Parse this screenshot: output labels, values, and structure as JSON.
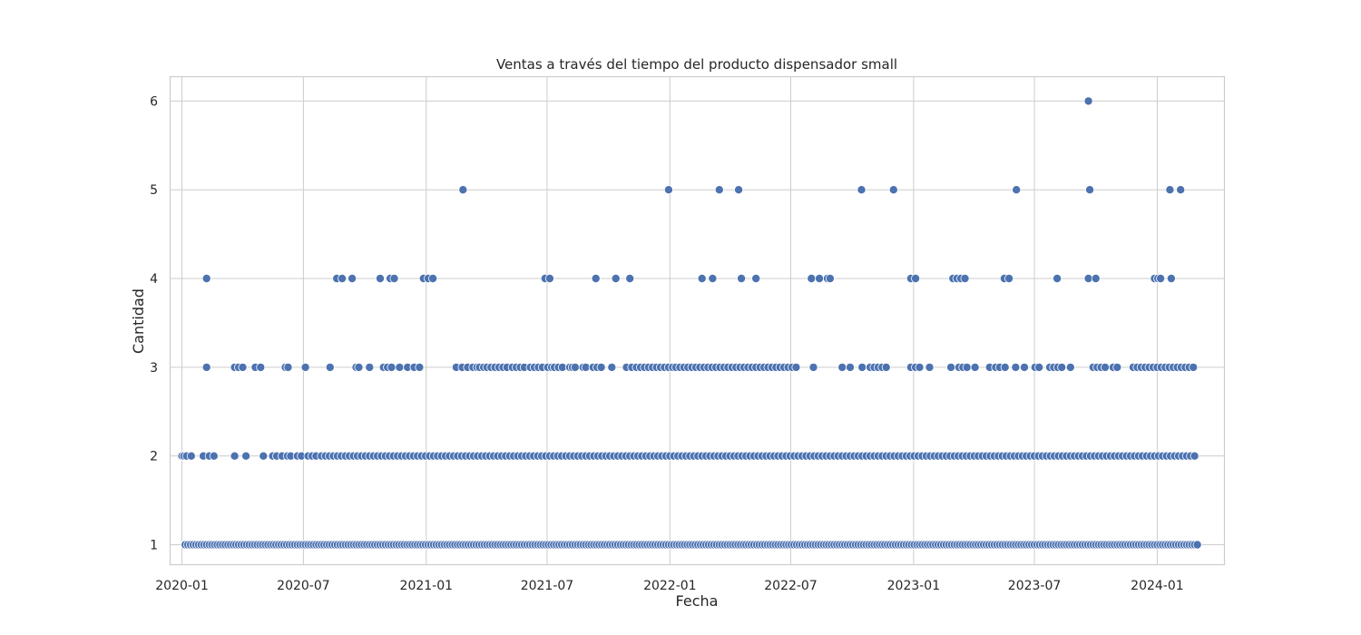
{
  "chart_data": {
    "type": "scatter",
    "title": "Ventas a través del tiempo del producto dispensador small",
    "xlabel": "Fecha",
    "ylabel": "Cantidad",
    "x_ticks": [
      "2020-01",
      "2020-07",
      "2021-01",
      "2021-07",
      "2022-01",
      "2022-07",
      "2023-01",
      "2023-07",
      "2024-01"
    ],
    "y_ticks": [
      1,
      2,
      3,
      4,
      5,
      6
    ],
    "xlim": [
      "2019-12-15",
      "2024-04-10"
    ],
    "ylim": [
      0.78,
      6.27
    ],
    "grid": true,
    "legend": "none",
    "marker_color": "#4c72b0",
    "points_by_value": {
      "6": [
        "2023-09-20"
      ],
      "5": [
        "2021-02-25",
        "2021-12-30",
        "2022-03-16",
        "2022-04-14",
        "2022-10-15",
        "2022-12-02",
        "2023-06-04",
        "2023-09-22",
        "2024-01-20",
        "2024-02-05"
      ],
      "4": [
        "2020-02-07",
        "2020-08-20",
        "2020-08-28",
        "2020-09-12",
        "2020-10-24",
        "2020-11-08",
        "2020-11-14",
        "2020-12-28",
        "2021-01-04",
        "2021-01-11",
        "2021-06-28",
        "2021-07-05",
        "2021-09-12",
        "2021-10-12",
        "2021-11-02",
        "2022-02-18",
        "2022-03-06",
        "2022-04-18",
        "2022-05-10",
        "2022-08-01",
        "2022-08-13",
        "2022-08-25",
        "2022-08-29",
        "2022-12-28",
        "2023-01-04",
        "2023-03-01",
        "2023-03-07",
        "2023-03-13",
        "2023-03-19",
        "2023-05-17",
        "2023-05-24",
        "2023-08-04",
        "2023-09-20",
        "2023-10-01",
        "2023-12-28",
        "2024-01-02",
        "2024-01-06",
        "2024-01-22"
      ],
      "3": [
        "2020-02-07",
        "2020-03-20",
        "2020-03-26",
        "2020-04-01",
        "2020-04-20",
        "2020-04-28",
        "2020-06-04",
        "2020-06-08",
        "2020-07-04",
        "2020-08-10",
        "2020-09-18",
        "2020-09-22",
        "2020-10-08",
        "2020-10-29",
        "2020-11-04",
        "2020-11-10",
        "2020-11-22",
        "2020-12-04",
        "2020-12-14",
        "2020-12-22",
        "2021-02-15",
        "2021-02-24",
        "2021-03-04",
        "2021-03-12",
        "2021-03-18",
        "2021-03-22",
        "2021-03-28",
        "2021-04-02",
        "2021-04-08",
        "2021-04-14",
        "2021-04-20",
        "2021-04-26",
        "2021-05-02",
        "2021-05-10",
        "2021-05-16",
        "2021-05-22",
        "2021-05-28",
        "2021-06-06",
        "2021-06-12",
        "2021-06-18",
        "2021-06-24",
        "2021-07-02",
        "2021-07-08",
        "2021-07-12",
        "2021-07-18",
        "2021-07-24",
        "2021-08-04",
        "2021-08-08",
        "2021-08-12",
        "2021-08-24",
        "2021-08-28",
        "2021-09-08",
        "2021-09-14",
        "2021-09-20",
        "2021-10-06",
        "2021-10-28",
        "2021-11-05",
        "2021-11-12",
        "2021-11-18",
        "2021-11-24",
        "2021-11-30",
        "2021-12-06",
        "2021-12-12",
        "2021-12-18",
        "2021-12-24",
        "2021-12-30",
        "2022-01-05",
        "2022-01-10",
        "2022-01-16",
        "2022-01-22",
        "2022-01-28",
        "2022-02-03",
        "2022-02-09",
        "2022-02-15",
        "2022-02-21",
        "2022-02-27",
        "2022-03-05",
        "2022-03-11",
        "2022-03-17",
        "2022-03-23",
        "2022-03-29",
        "2022-04-04",
        "2022-04-10",
        "2022-04-16",
        "2022-04-22",
        "2022-04-28",
        "2022-05-04",
        "2022-05-10",
        "2022-05-16",
        "2022-05-22",
        "2022-05-28",
        "2022-06-03",
        "2022-06-09",
        "2022-06-15",
        "2022-06-21",
        "2022-06-27",
        "2022-07-03",
        "2022-07-09",
        "2022-08-04",
        "2022-09-16",
        "2022-09-28",
        "2022-10-16",
        "2022-10-28",
        "2022-11-03",
        "2022-11-09",
        "2022-11-15",
        "2022-11-21",
        "2022-12-28",
        "2023-01-04",
        "2023-01-10",
        "2023-01-25",
        "2023-02-26",
        "2023-03-10",
        "2023-03-16",
        "2023-03-22",
        "2023-04-03",
        "2023-04-25",
        "2023-05-04",
        "2023-05-10",
        "2023-05-18",
        "2023-06-03",
        "2023-06-16",
        "2023-07-02",
        "2023-07-08",
        "2023-07-24",
        "2023-07-30",
        "2023-08-05",
        "2023-08-11",
        "2023-08-24",
        "2023-09-27",
        "2023-10-03",
        "2023-10-09",
        "2023-10-15",
        "2023-10-27",
        "2023-11-02",
        "2023-11-26",
        "2023-12-02",
        "2023-12-08",
        "2023-12-14",
        "2023-12-20",
        "2023-12-26",
        "2024-01-01",
        "2024-01-07",
        "2024-01-13",
        "2024-01-19",
        "2024-01-25",
        "2024-01-31",
        "2024-02-06",
        "2024-02-12",
        "2024-02-18",
        "2024-02-24"
      ],
      "2": [
        "2020-01-01",
        "2020-01-04",
        "2020-01-08",
        "2020-01-15",
        "2020-02-02",
        "2020-02-11",
        "2020-02-18",
        "2020-03-20",
        "2020-04-06",
        "2020-05-02",
        "2020-05-16",
        "2020-05-22",
        "2020-05-30",
        "2020-06-07",
        "2020-06-12",
        "2020-06-22",
        "2020-06-28",
        "2020-07-08",
        "2020-07-14",
        "2020-07-20",
        "2020-07-28",
        "2020-08-03",
        "2020-08-09",
        "2020-08-15",
        "2020-08-21",
        "2020-08-27",
        "2020-09-02",
        "2020-09-08",
        "2020-09-14",
        "2020-09-20",
        "2020-09-26",
        "2020-10-02",
        "2020-10-08",
        "2020-10-14",
        "2020-10-20",
        "2020-10-26",
        "2020-11-01",
        "2020-11-07",
        "2020-11-13",
        "2020-11-19",
        "2020-11-25",
        "2020-12-01",
        "2020-12-07",
        "2020-12-13",
        "2020-12-19",
        "2020-12-25",
        "2020-12-31",
        "2021-01-06",
        "2021-01-12",
        "2021-01-18",
        "2021-01-24",
        "2021-01-30",
        "2021-02-05",
        "2021-02-11",
        "2021-02-17",
        "2021-02-23",
        "2021-03-01",
        "2021-03-07",
        "2021-03-13",
        "2021-03-19",
        "2021-03-25",
        "2021-03-31",
        "2021-04-06",
        "2021-04-12",
        "2021-04-18",
        "2021-04-24",
        "2021-04-30",
        "2021-05-06",
        "2021-05-12",
        "2021-05-18",
        "2021-05-24",
        "2021-05-30",
        "2021-06-05",
        "2021-06-11",
        "2021-06-17",
        "2021-06-23",
        "2021-06-29",
        "2021-07-05",
        "2021-07-11",
        "2021-07-17",
        "2021-07-23",
        "2021-07-29",
        "2021-08-04",
        "2021-08-10",
        "2021-08-16",
        "2021-08-22",
        "2021-08-28",
        "2021-09-03",
        "2021-09-09",
        "2021-09-15",
        "2021-09-21",
        "2021-09-27",
        "2021-10-03",
        "2021-10-09",
        "2021-10-15",
        "2021-10-21",
        "2021-10-27",
        "2021-11-02",
        "2021-11-08",
        "2021-11-14",
        "2021-11-20",
        "2021-11-26",
        "2021-12-02",
        "2021-12-08",
        "2021-12-14",
        "2021-12-20",
        "2021-12-26",
        "2022-01-01",
        "2022-01-07",
        "2022-01-13",
        "2022-01-19",
        "2022-01-25",
        "2022-01-31",
        "2022-02-06",
        "2022-02-12",
        "2022-02-18",
        "2022-02-24",
        "2022-03-02",
        "2022-03-08",
        "2022-03-14",
        "2022-03-20",
        "2022-03-26",
        "2022-04-01",
        "2022-04-07",
        "2022-04-13",
        "2022-04-19",
        "2022-04-25",
        "2022-05-01",
        "2022-05-07",
        "2022-05-13",
        "2022-05-19",
        "2022-05-25",
        "2022-05-31",
        "2022-06-06",
        "2022-06-12",
        "2022-06-18",
        "2022-06-24",
        "2022-06-30",
        "2022-07-06",
        "2022-07-12",
        "2022-07-18",
        "2022-07-24",
        "2022-07-30",
        "2022-08-05",
        "2022-08-11",
        "2022-08-17",
        "2022-08-23",
        "2022-08-29",
        "2022-09-04",
        "2022-09-10",
        "2022-09-16",
        "2022-09-22",
        "2022-09-28",
        "2022-10-04",
        "2022-10-10",
        "2022-10-16",
        "2022-10-22",
        "2022-10-28",
        "2022-11-03",
        "2022-11-09",
        "2022-11-15",
        "2022-11-21",
        "2022-11-27",
        "2022-12-03",
        "2022-12-09",
        "2022-12-15",
        "2022-12-21",
        "2022-12-27",
        "2023-01-02",
        "2023-01-08",
        "2023-01-14",
        "2023-01-20",
        "2023-01-26",
        "2023-02-01",
        "2023-02-07",
        "2023-02-13",
        "2023-02-19",
        "2023-02-25",
        "2023-03-03",
        "2023-03-09",
        "2023-03-15",
        "2023-03-21",
        "2023-03-27",
        "2023-04-02",
        "2023-04-08",
        "2023-04-14",
        "2023-04-20",
        "2023-04-26",
        "2023-05-02",
        "2023-05-08",
        "2023-05-14",
        "2023-05-20",
        "2023-05-26",
        "2023-06-01",
        "2023-06-07",
        "2023-06-13",
        "2023-06-19",
        "2023-06-25",
        "2023-07-01",
        "2023-07-07",
        "2023-07-13",
        "2023-07-19",
        "2023-07-25",
        "2023-07-31",
        "2023-08-06",
        "2023-08-12",
        "2023-08-18",
        "2023-08-24",
        "2023-08-30",
        "2023-09-05",
        "2023-09-11",
        "2023-09-17",
        "2023-09-23",
        "2023-09-29",
        "2023-10-05",
        "2023-10-11",
        "2023-10-17",
        "2023-10-23",
        "2023-10-29",
        "2023-11-04",
        "2023-11-10",
        "2023-11-16",
        "2023-11-22",
        "2023-11-28",
        "2023-12-04",
        "2023-12-10",
        "2023-12-16",
        "2023-12-22",
        "2023-12-28",
        "2024-01-03",
        "2024-01-09",
        "2024-01-15",
        "2024-01-21",
        "2024-01-27",
        "2024-02-02",
        "2024-02-08",
        "2024-02-14",
        "2024-02-20",
        "2024-02-26"
      ],
      "1": [
        "2020-01-06",
        "2020-01-10",
        "2020-01-14",
        "2020-01-18",
        "2020-01-22",
        "2020-01-26",
        "2020-01-30",
        "2020-02-03",
        "2020-02-07",
        "2020-02-11",
        "2020-02-15",
        "2020-02-19",
        "2020-02-23",
        "2020-02-27",
        "2020-03-02",
        "2020-03-06",
        "2020-03-10",
        "2020-03-14",
        "2020-03-18",
        "2020-03-22",
        "2020-03-26",
        "2020-03-30",
        "2020-04-03",
        "2020-04-07",
        "2020-04-11",
        "2020-04-15",
        "2020-04-19",
        "2020-04-23",
        "2020-04-27",
        "2020-05-01",
        "2020-05-05",
        "2020-05-09",
        "2020-05-13",
        "2020-05-17",
        "2020-05-21",
        "2020-05-25",
        "2020-05-29",
        "2020-06-02",
        "2020-06-06",
        "2020-06-10",
        "2020-06-14",
        "2020-06-18",
        "2020-06-22",
        "2020-06-26",
        "2020-06-30",
        "2020-07-04",
        "2020-07-08",
        "2020-07-12",
        "2020-07-16",
        "2020-07-20",
        "2020-07-24",
        "2020-07-28",
        "2020-08-01",
        "2020-08-05",
        "2020-08-09",
        "2020-08-13",
        "2020-08-17",
        "2020-08-21",
        "2020-08-25",
        "2020-08-29",
        "2020-09-02",
        "2020-09-06",
        "2020-09-10",
        "2020-09-14",
        "2020-09-18",
        "2020-09-22",
        "2020-09-26",
        "2020-09-30",
        "2020-10-04",
        "2020-10-08",
        "2020-10-12",
        "2020-10-16",
        "2020-10-20",
        "2020-10-24",
        "2020-10-28",
        "2020-11-01",
        "2020-11-05",
        "2020-11-09",
        "2020-11-13",
        "2020-11-17",
        "2020-11-21",
        "2020-11-25",
        "2020-11-29",
        "2020-12-03",
        "2020-12-07",
        "2020-12-11",
        "2020-12-15",
        "2020-12-19",
        "2020-12-23",
        "2020-12-27",
        "2020-12-31",
        "2021-01-04",
        "2021-01-08",
        "2021-01-12",
        "2021-01-16",
        "2021-01-20",
        "2021-01-24",
        "2021-01-28",
        "2021-02-01",
        "2021-02-05",
        "2021-02-09",
        "2021-02-13",
        "2021-02-17",
        "2021-02-21",
        "2021-02-25",
        "2021-03-01",
        "2021-03-05",
        "2021-03-09",
        "2021-03-13",
        "2021-03-17",
        "2021-03-21",
        "2021-03-25",
        "2021-03-29",
        "2021-04-02",
        "2021-04-06",
        "2021-04-10",
        "2021-04-14",
        "2021-04-18",
        "2021-04-22",
        "2021-04-26",
        "2021-04-30",
        "2021-05-04",
        "2021-05-08",
        "2021-05-12",
        "2021-05-16",
        "2021-05-20",
        "2021-05-24",
        "2021-05-28",
        "2021-06-01",
        "2021-06-05",
        "2021-06-09",
        "2021-06-13",
        "2021-06-17",
        "2021-06-21",
        "2021-06-25",
        "2021-06-29",
        "2021-07-03",
        "2021-07-07",
        "2021-07-11",
        "2021-07-15",
        "2021-07-19",
        "2021-07-23",
        "2021-07-27",
        "2021-07-31",
        "2021-08-04",
        "2021-08-08",
        "2021-08-12",
        "2021-08-16",
        "2021-08-20",
        "2021-08-24",
        "2021-08-28",
        "2021-09-01",
        "2021-09-05",
        "2021-09-09",
        "2021-09-13",
        "2021-09-17",
        "2021-09-21",
        "2021-09-25",
        "2021-09-29",
        "2021-10-03",
        "2021-10-07",
        "2021-10-11",
        "2021-10-15",
        "2021-10-19",
        "2021-10-23",
        "2021-10-27",
        "2021-10-31",
        "2021-11-04",
        "2021-11-08",
        "2021-11-12",
        "2021-11-16",
        "2021-11-20",
        "2021-11-24",
        "2021-11-28",
        "2021-12-02",
        "2021-12-06",
        "2021-12-10",
        "2021-12-14",
        "2021-12-18",
        "2021-12-22",
        "2021-12-26",
        "2021-12-30",
        "2022-01-03",
        "2022-01-07",
        "2022-01-11",
        "2022-01-15",
        "2022-01-19",
        "2022-01-23",
        "2022-01-27",
        "2022-01-31",
        "2022-02-04",
        "2022-02-08",
        "2022-02-12",
        "2022-02-16",
        "2022-02-20",
        "2022-02-24",
        "2022-02-28",
        "2022-03-04",
        "2022-03-08",
        "2022-03-12",
        "2022-03-16",
        "2022-03-20",
        "2022-03-24",
        "2022-03-28",
        "2022-04-01",
        "2022-04-05",
        "2022-04-09",
        "2022-04-13",
        "2022-04-17",
        "2022-04-21",
        "2022-04-25",
        "2022-04-29",
        "2022-05-03",
        "2022-05-07",
        "2022-05-11",
        "2022-05-15",
        "2022-05-19",
        "2022-05-23",
        "2022-05-27",
        "2022-05-31",
        "2022-06-04",
        "2022-06-08",
        "2022-06-12",
        "2022-06-16",
        "2022-06-20",
        "2022-06-24",
        "2022-06-28",
        "2022-07-02",
        "2022-07-06",
        "2022-07-10",
        "2022-07-14",
        "2022-07-18",
        "2022-07-22",
        "2022-07-26",
        "2022-07-30",
        "2022-08-03",
        "2022-08-07",
        "2022-08-11",
        "2022-08-15",
        "2022-08-19",
        "2022-08-23",
        "2022-08-27",
        "2022-08-31",
        "2022-09-04",
        "2022-09-08",
        "2022-09-12",
        "2022-09-16",
        "2022-09-20",
        "2022-09-24",
        "2022-09-28",
        "2022-10-02",
        "2022-10-06",
        "2022-10-10",
        "2022-10-14",
        "2022-10-18",
        "2022-10-22",
        "2022-10-26",
        "2022-10-30",
        "2022-11-03",
        "2022-11-07",
        "2022-11-11",
        "2022-11-15",
        "2022-11-19",
        "2022-11-23",
        "2022-11-27",
        "2022-12-01",
        "2022-12-05",
        "2022-12-09",
        "2022-12-13",
        "2022-12-17",
        "2022-12-21",
        "2022-12-25",
        "2022-12-29",
        "2023-01-02",
        "2023-01-06",
        "2023-01-10",
        "2023-01-14",
        "2023-01-18",
        "2023-01-22",
        "2023-01-26",
        "2023-01-30",
        "2023-02-03",
        "2023-02-07",
        "2023-02-11",
        "2023-02-15",
        "2023-02-19",
        "2023-02-23",
        "2023-02-27",
        "2023-03-03",
        "2023-03-07",
        "2023-03-11",
        "2023-03-15",
        "2023-03-19",
        "2023-03-23",
        "2023-03-27",
        "2023-03-31",
        "2023-04-04",
        "2023-04-08",
        "2023-04-12",
        "2023-04-16",
        "2023-04-20",
        "2023-04-24",
        "2023-04-28",
        "2023-05-02",
        "2023-05-06",
        "2023-05-10",
        "2023-05-14",
        "2023-05-18",
        "2023-05-22",
        "2023-05-26",
        "2023-05-30",
        "2023-06-03",
        "2023-06-07",
        "2023-06-11",
        "2023-06-15",
        "2023-06-19",
        "2023-06-23",
        "2023-06-27",
        "2023-07-01",
        "2023-07-05",
        "2023-07-09",
        "2023-07-13",
        "2023-07-17",
        "2023-07-21",
        "2023-07-25",
        "2023-07-29",
        "2023-08-02",
        "2023-08-06",
        "2023-08-10",
        "2023-08-14",
        "2023-08-18",
        "2023-08-22",
        "2023-08-26",
        "2023-08-30",
        "2023-09-03",
        "2023-09-07",
        "2023-09-11",
        "2023-09-15",
        "2023-09-19",
        "2023-09-23",
        "2023-09-27",
        "2023-10-01",
        "2023-10-05",
        "2023-10-09",
        "2023-10-13",
        "2023-10-17",
        "2023-10-21",
        "2023-10-25",
        "2023-10-29",
        "2023-11-02",
        "2023-11-06",
        "2023-11-10",
        "2023-11-14",
        "2023-11-18",
        "2023-11-22",
        "2023-11-26",
        "2023-11-30",
        "2023-12-04",
        "2023-12-08",
        "2023-12-12",
        "2023-12-16",
        "2023-12-20",
        "2023-12-24",
        "2023-12-28",
        "2024-01-01",
        "2024-01-05",
        "2024-01-09",
        "2024-01-13",
        "2024-01-17",
        "2024-01-21",
        "2024-01-25",
        "2024-01-29",
        "2024-02-02",
        "2024-02-06",
        "2024-02-10",
        "2024-02-14",
        "2024-02-18",
        "2024-02-22",
        "2024-02-26",
        "2024-03-01"
      ]
    }
  }
}
